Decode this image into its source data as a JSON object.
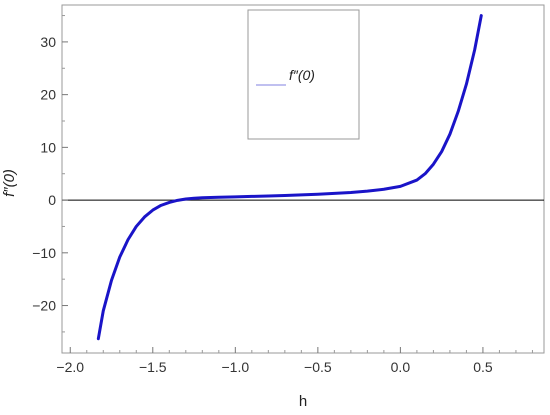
{
  "chart_data": {
    "type": "line",
    "xlabel": "h",
    "ylabel": "f″(0)",
    "xlim": [
      -2.05,
      0.87
    ],
    "ylim": [
      -29,
      37
    ],
    "xticks": [
      -2.0,
      -1.5,
      -1.0,
      -0.5,
      0.0,
      0.5
    ],
    "xtick_labels": [
      "−2.0",
      "−1.5",
      "−1.0",
      "−0.5",
      "0.0",
      "0.5"
    ],
    "yticks": [
      -20,
      -10,
      0,
      10,
      20,
      30
    ],
    "ytick_labels": [
      "−20",
      "−10",
      "0",
      "10",
      "20",
      "30"
    ],
    "grid": false,
    "legend": {
      "position": "top-center",
      "entries": [
        "f″(0)"
      ]
    },
    "zero_line": true,
    "series": [
      {
        "name": "f″(0)",
        "color": "#1a14c8",
        "x": [
          -1.83,
          -1.8,
          -1.75,
          -1.7,
          -1.65,
          -1.6,
          -1.55,
          -1.5,
          -1.45,
          -1.4,
          -1.35,
          -1.3,
          -1.25,
          -1.2,
          -1.1,
          -1.0,
          -0.9,
          -0.8,
          -0.7,
          -0.6,
          -0.5,
          -0.4,
          -0.3,
          -0.2,
          -0.1,
          0.0,
          0.1,
          0.15,
          0.2,
          0.25,
          0.3,
          0.35,
          0.4,
          0.45,
          0.49
        ],
        "y": [
          -26.3,
          -21.0,
          -15.2,
          -10.8,
          -7.5,
          -5.0,
          -3.2,
          -1.9,
          -1.0,
          -0.45,
          -0.05,
          0.2,
          0.35,
          0.45,
          0.55,
          0.62,
          0.7,
          0.78,
          0.88,
          1.0,
          1.12,
          1.27,
          1.45,
          1.7,
          2.05,
          2.6,
          3.8,
          5.0,
          6.8,
          9.2,
          12.5,
          16.8,
          22.0,
          28.5,
          35.0
        ]
      }
    ]
  }
}
